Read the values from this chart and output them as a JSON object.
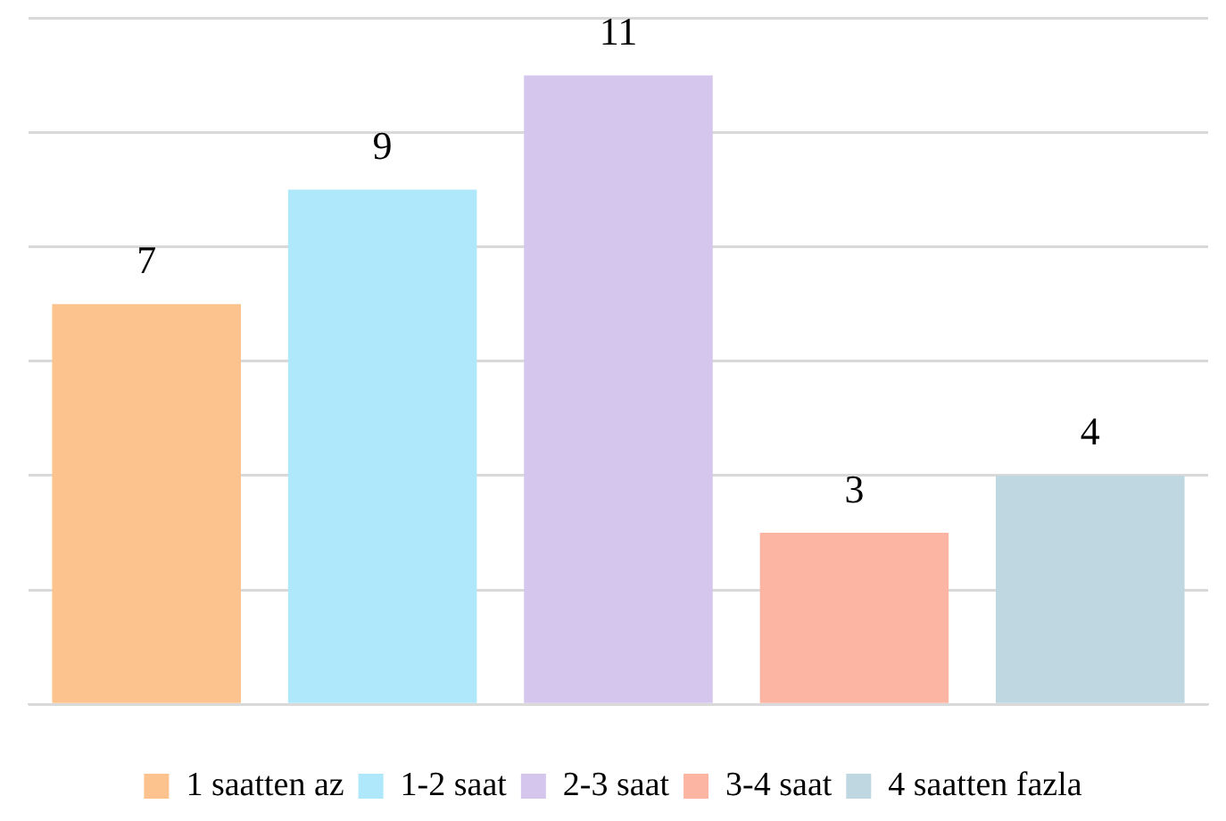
{
  "chart_data": {
    "type": "bar",
    "stacked": true,
    "categories": [
      null,
      null,
      null,
      null,
      null
    ],
    "series": [
      {
        "name": "1 saatten az",
        "color": "#fdc38e",
        "values": [
          7,
          null,
          null,
          null,
          null
        ]
      },
      {
        "name": "1-2 saat",
        "color": "#aee8fa",
        "values": [
          null,
          9,
          null,
          null,
          null
        ]
      },
      {
        "name": "2-3 saat",
        "color": "#d5c6ee",
        "values": [
          null,
          null,
          11,
          null,
          null
        ]
      },
      {
        "name": "3-4 saat",
        "color": "#fcb5a2",
        "values": [
          null,
          null,
          null,
          3,
          null
        ]
      },
      {
        "name": "4 saatten fazla",
        "color": "#bfd7e0",
        "values": [
          null,
          null,
          null,
          null,
          4
        ]
      }
    ],
    "ylim": [
      0,
      12
    ],
    "yticks": [
      {
        "value": 0,
        "label": null
      },
      {
        "value": 2,
        "label": null
      },
      {
        "value": 4,
        "label": null
      },
      {
        "value": 6,
        "label": null
      },
      {
        "value": 8,
        "label": null
      },
      {
        "value": 10,
        "label": null
      },
      {
        "value": 12,
        "label": null
      }
    ],
    "grid": "y",
    "legend": "bottom",
    "data_labels": true
  }
}
